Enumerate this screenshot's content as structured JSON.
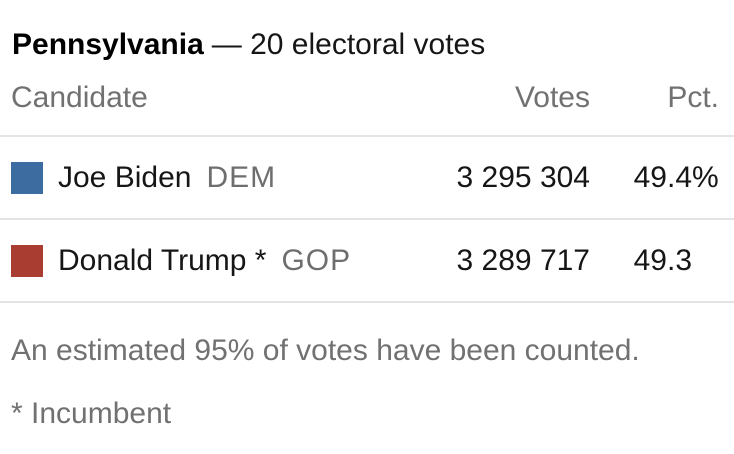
{
  "table": {
    "title": {
      "state": "Pennsylvania",
      "rest": "— 20 electoral votes"
    },
    "columns": {
      "candidate": "Candidate",
      "votes": "Votes",
      "pct": "Pct."
    },
    "rows": [
      {
        "name": "Joe Biden",
        "party": "DEM",
        "votes": "3 295 304",
        "pct": "49.4",
        "pct_suffix": "%",
        "color": "#3d6ca0"
      },
      {
        "name": "Donald Trump *",
        "party": "GOP",
        "votes": "3 289 717",
        "pct": "49.3",
        "pct_suffix": "",
        "color": "#aa3d32"
      }
    ],
    "footnote": "An estimated 95% of votes have been counted.",
    "incumbent_note": "* Incumbent"
  },
  "colors": {
    "dem_blue": "#3d6ca0",
    "gop_red": "#aa3d32",
    "text_dark": "#161616",
    "text_gray": "#717171",
    "divider": "#e4e4e4"
  },
  "chart_data": {
    "type": "table",
    "title": "Pennsylvania — 20 electoral votes",
    "electoral_votes": 20,
    "columns": [
      "Candidate",
      "Votes",
      "Pct."
    ],
    "rows": [
      {
        "candidate": "Joe Biden",
        "party": "DEM",
        "votes": 3295304,
        "pct": 49.4,
        "incumbent": false,
        "color": "#3d6ca0"
      },
      {
        "candidate": "Donald Trump",
        "party": "GOP",
        "votes": 3289717,
        "pct": 49.3,
        "incumbent": true,
        "color": "#aa3d32"
      }
    ],
    "annotations": [
      "An estimated 95% of votes have been counted.",
      "* Incumbent"
    ]
  }
}
